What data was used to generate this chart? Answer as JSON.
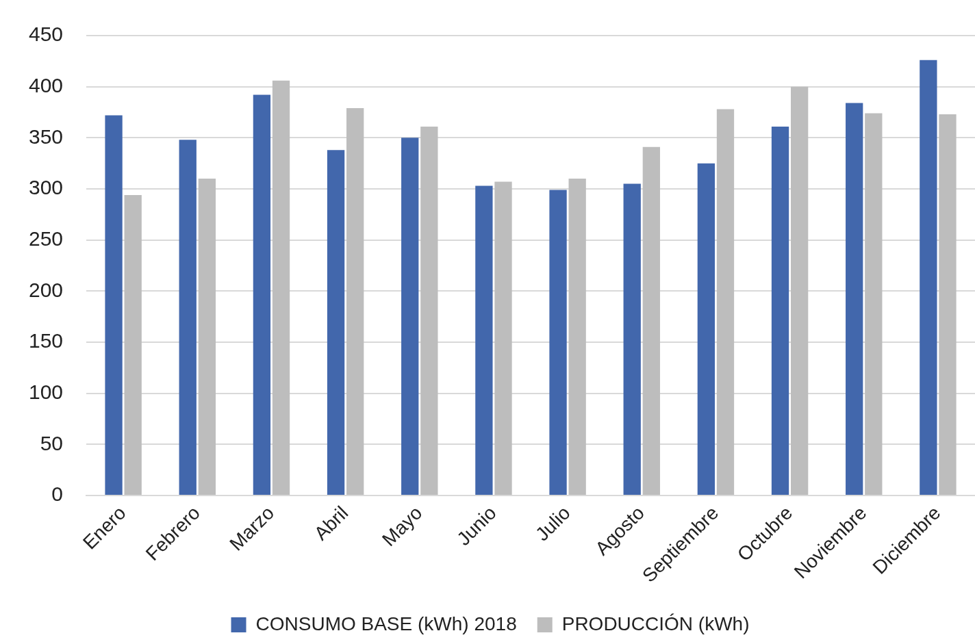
{
  "chart_data": {
    "type": "bar",
    "categories": [
      "Enero",
      "Febrero",
      "Marzo",
      "Abril",
      "Mayo",
      "Junio",
      "Julio",
      "Agosto",
      "Septiembre",
      "Octubre",
      "Noviembre",
      "Diciembre"
    ],
    "series": [
      {
        "name": "CONSUMO BASE (kWh) 2018",
        "color": "#4267ac",
        "values": [
          372,
          348,
          392,
          338,
          350,
          303,
          299,
          305,
          325,
          361,
          384,
          426
        ]
      },
      {
        "name": "PRODUCCIÓN (kWh)",
        "color": "#bdbdbd",
        "values": [
          294,
          310,
          406,
          379,
          361,
          307,
          310,
          341,
          378,
          400,
          374,
          373
        ]
      }
    ],
    "ylim": [
      0,
      450
    ],
    "yticks": [
      0,
      50,
      100,
      150,
      200,
      250,
      300,
      350,
      400,
      450
    ],
    "grid": "y",
    "legend": "bottom"
  }
}
